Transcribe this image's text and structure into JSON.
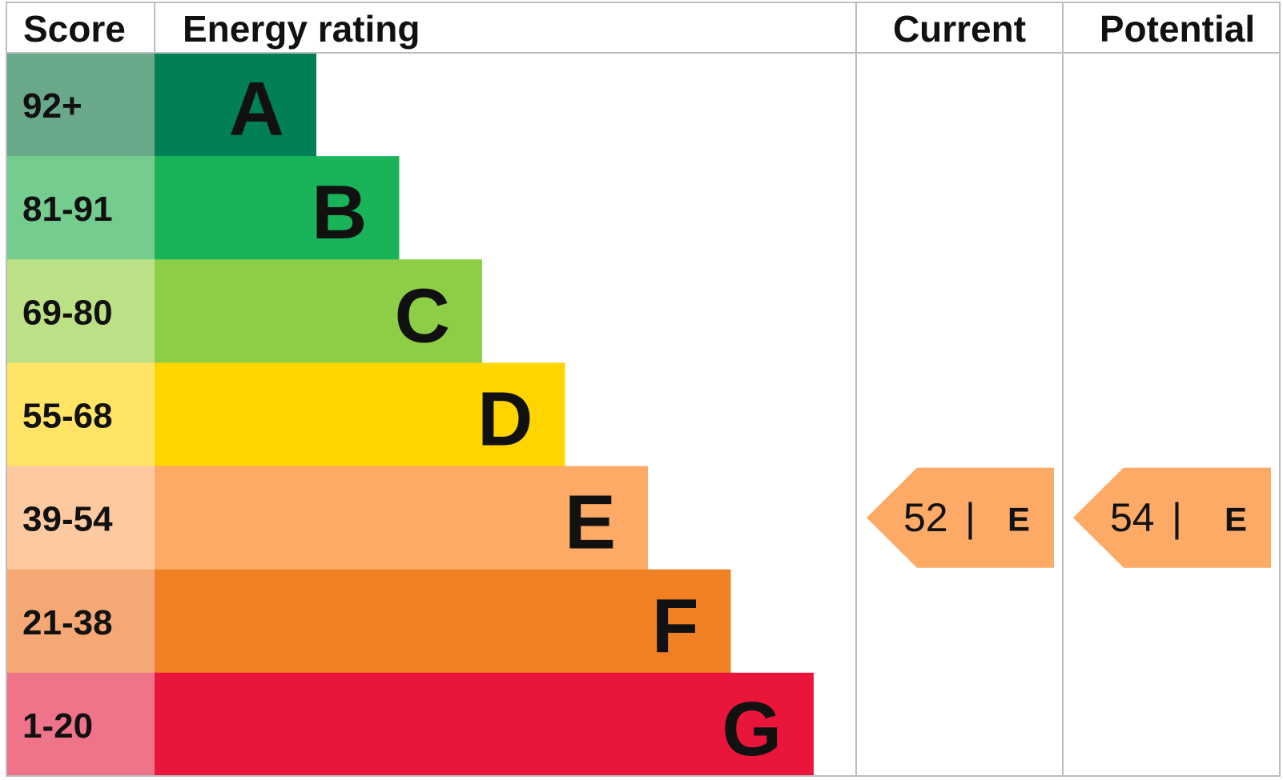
{
  "header": {
    "score": "Score",
    "rating": "Energy rating",
    "current": "Current",
    "potential": "Potential"
  },
  "bands": [
    {
      "score": "92+",
      "letter": "A",
      "color": "#008054",
      "score_color": "#6aa88a"
    },
    {
      "score": "81-91",
      "letter": "B",
      "color": "#19b459",
      "score_color": "#75cc8f"
    },
    {
      "score": "69-80",
      "letter": "C",
      "color": "#8dce46",
      "score_color": "#bbe086"
    },
    {
      "score": "55-68",
      "letter": "D",
      "color": "#ffd500",
      "score_color": "#ffe466"
    },
    {
      "score": "39-54",
      "letter": "E",
      "color": "#fcaa65",
      "score_color": "#fdc9a0"
    },
    {
      "score": "21-38",
      "letter": "F",
      "color": "#ef8023",
      "score_color": "#f5a874"
    },
    {
      "score": "1-20",
      "letter": "G",
      "color": "#e9153b",
      "score_color": "#f07489"
    }
  ],
  "separator": "|",
  "current": {
    "value": 52,
    "letter": "E"
  },
  "potential": {
    "value": 54,
    "letter": "E"
  }
}
